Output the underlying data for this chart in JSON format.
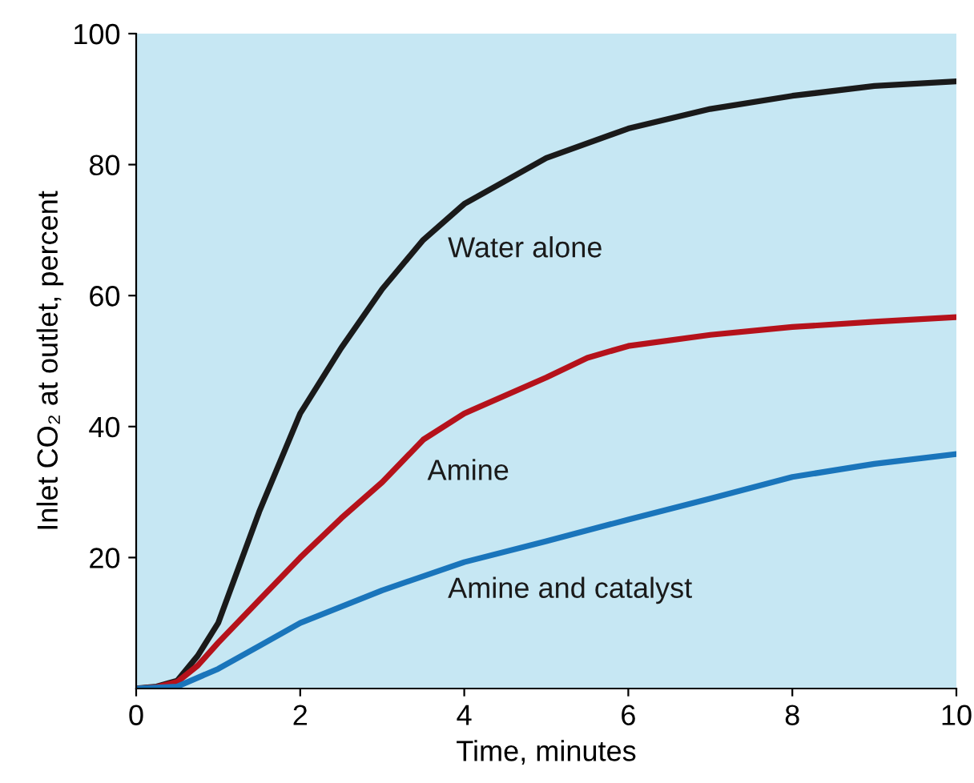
{
  "chart_data": {
    "type": "line",
    "xlabel": "Time, minutes",
    "ylabel": "Inlet CO₂ at outlet, percent",
    "xlim": [
      0,
      10
    ],
    "ylim": [
      0,
      100
    ],
    "xticks": [
      0,
      2,
      4,
      6,
      8,
      10
    ],
    "yticks": [
      20,
      40,
      60,
      80,
      100
    ],
    "grid": false,
    "legend": false,
    "marker": "none",
    "line_style": "solid",
    "series": [
      {
        "name": "Water alone",
        "color": "#1a1a1a",
        "x": [
          0,
          0.25,
          0.5,
          0.75,
          1.0,
          1.5,
          2,
          2.5,
          3,
          3.5,
          4,
          5,
          6,
          7,
          8,
          9,
          10
        ],
        "values": [
          0,
          0.3,
          1.2,
          5,
          10,
          27,
          42,
          52,
          61,
          68.5,
          74,
          81,
          85.5,
          88.5,
          90.5,
          92,
          92.7
        ]
      },
      {
        "name": "Amine",
        "color": "#b5121b",
        "x": [
          0,
          0.25,
          0.5,
          0.75,
          1.0,
          1.5,
          2,
          2.5,
          3,
          3.5,
          4,
          5,
          5.5,
          6,
          7,
          8,
          9,
          10
        ],
        "values": [
          0,
          0.2,
          1,
          3.5,
          7,
          13.5,
          20,
          26,
          31.5,
          38,
          42,
          47.5,
          50.5,
          52.3,
          54,
          55.2,
          56,
          56.7
        ]
      },
      {
        "name": "Amine and catalyst",
        "color": "#1a75bb",
        "x": [
          0,
          0.5,
          1.0,
          1.5,
          2,
          3,
          4,
          5,
          6,
          7,
          8,
          9,
          10
        ],
        "values": [
          0,
          0.3,
          3,
          6.5,
          10,
          15,
          19.3,
          22.5,
          25.8,
          29,
          32.3,
          34.3,
          35.8
        ]
      }
    ]
  }
}
